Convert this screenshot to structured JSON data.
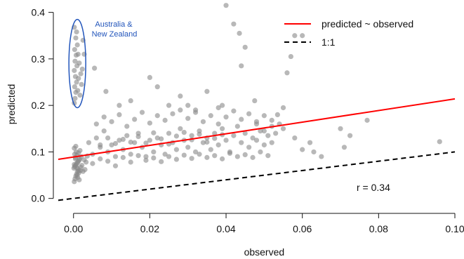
{
  "chart_data": {
    "type": "scatter",
    "xlabel": "observed",
    "ylabel": "predicted",
    "xlim": [
      -0.004,
      0.1
    ],
    "ylim": [
      -0.005,
      0.41
    ],
    "x_ticks": [
      "0.00",
      "0.02",
      "0.04",
      "0.06",
      "0.08",
      "0.10"
    ],
    "y_ticks": [
      "0.0",
      "0.1",
      "0.2",
      "0.3",
      "0.4"
    ],
    "legend": {
      "placement": "top-right",
      "entries": [
        {
          "label": "predicted ~ observed",
          "color": "#ff0000",
          "style": "solid"
        },
        {
          "label": "1:1",
          "color": "#000000",
          "style": "dashed"
        }
      ]
    },
    "annotation": {
      "text_lines": [
        "Australia &",
        "New Zealand"
      ],
      "color": "#2255bb",
      "ellipse": {
        "center": [
          0.001,
          0.29
        ],
        "rx": 0.0015,
        "ry": 0.095
      }
    },
    "correlation_label": "r = 0.34",
    "lines": [
      {
        "name": "predicted ~ observed",
        "color": "#ff0000",
        "x": [
          -0.004,
          0.1
        ],
        "y": [
          0.084,
          0.214
        ]
      },
      {
        "name": "1:1",
        "color": "#000000",
        "dash": true,
        "x": [
          -0.004,
          0.1
        ],
        "y": [
          -0.004,
          0.1
        ]
      }
    ],
    "point_color": "#888888",
    "points": [
      [
        0.0002,
        0.036
      ],
      [
        0.0004,
        0.042
      ],
      [
        0.0006,
        0.048
      ],
      [
        0.0008,
        0.052
      ],
      [
        0.001,
        0.058
      ],
      [
        0.0012,
        0.063
      ],
      [
        0.0003,
        0.068
      ],
      [
        0.0007,
        0.072
      ],
      [
        0.0011,
        0.077
      ],
      [
        0.0015,
        0.082
      ],
      [
        0.0005,
        0.088
      ],
      [
        0.0009,
        0.093
      ],
      [
        0.0013,
        0.098
      ],
      [
        0.0017,
        0.103
      ],
      [
        0.0002,
        0.108
      ],
      [
        0.0006,
        0.112
      ],
      [
        0.001,
        0.05
      ],
      [
        0.0014,
        0.055
      ],
      [
        0.0018,
        0.06
      ],
      [
        0.0001,
        0.065
      ],
      [
        0.0004,
        0.07
      ],
      [
        0.0008,
        0.075
      ],
      [
        0.0012,
        0.08
      ],
      [
        0.0016,
        0.085
      ],
      [
        0.002,
        0.09
      ],
      [
        0.0003,
        0.095
      ],
      [
        0.0007,
        0.1
      ],
      [
        0.0011,
        0.045
      ],
      [
        0.0015,
        0.04
      ],
      [
        0.0019,
        0.067
      ],
      [
        0.0022,
        0.071
      ],
      [
        0.0025,
        0.058
      ],
      [
        0.0028,
        0.083
      ],
      [
        0.003,
        0.062
      ],
      [
        0.0033,
        0.078
      ],
      [
        0.0036,
        0.091
      ],
      [
        0.0002,
        0.073
      ],
      [
        0.0009,
        0.066
      ],
      [
        0.0013,
        0.059
      ],
      [
        0.0005,
        0.085
      ],
      [
        0.0002,
        0.205
      ],
      [
        0.0004,
        0.215
      ],
      [
        0.0006,
        0.228
      ],
      [
        0.0003,
        0.24
      ],
      [
        0.0008,
        0.25
      ],
      [
        0.0005,
        0.262
      ],
      [
        0.0002,
        0.275
      ],
      [
        0.0009,
        0.285
      ],
      [
        0.0004,
        0.295
      ],
      [
        0.0007,
        0.308
      ],
      [
        0.0003,
        0.32
      ],
      [
        0.001,
        0.33
      ],
      [
        0.0006,
        0.345
      ],
      [
        0.0008,
        0.358
      ],
      [
        0.0002,
        0.368
      ],
      [
        0.0011,
        0.232
      ],
      [
        0.0013,
        0.258
      ],
      [
        0.0015,
        0.291
      ],
      [
        0.0017,
        0.222
      ],
      [
        0.0012,
        0.31
      ],
      [
        0.0025,
        0.34
      ],
      [
        0.0028,
        0.31
      ],
      [
        0.0023,
        0.278
      ],
      [
        0.0021,
        0.245
      ],
      [
        0.0019,
        0.268
      ],
      [
        0.004,
        0.12
      ],
      [
        0.005,
        0.095
      ],
      [
        0.006,
        0.13
      ],
      [
        0.007,
        0.11
      ],
      [
        0.008,
        0.145
      ],
      [
        0.009,
        0.1
      ],
      [
        0.01,
        0.115
      ],
      [
        0.011,
        0.09
      ],
      [
        0.012,
        0.125
      ],
      [
        0.013,
        0.105
      ],
      [
        0.014,
        0.135
      ],
      [
        0.015,
        0.095
      ],
      [
        0.016,
        0.12
      ],
      [
        0.017,
        0.14
      ],
      [
        0.018,
        0.11
      ],
      [
        0.019,
        0.09
      ],
      [
        0.02,
        0.125
      ],
      [
        0.021,
        0.1
      ],
      [
        0.022,
        0.13
      ],
      [
        0.023,
        0.115
      ],
      [
        0.024,
        0.095
      ],
      [
        0.025,
        0.14
      ],
      [
        0.026,
        0.12
      ],
      [
        0.027,
        0.105
      ],
      [
        0.028,
        0.15
      ],
      [
        0.029,
        0.125
      ],
      [
        0.03,
        0.11
      ],
      [
        0.031,
        0.135
      ],
      [
        0.032,
        0.1
      ],
      [
        0.033,
        0.145
      ],
      [
        0.034,
        0.12
      ],
      [
        0.035,
        0.13
      ],
      [
        0.036,
        0.105
      ],
      [
        0.037,
        0.14
      ],
      [
        0.038,
        0.115
      ],
      [
        0.039,
        0.15
      ],
      [
        0.04,
        0.125
      ],
      [
        0.041,
        0.1
      ],
      [
        0.042,
        0.135
      ],
      [
        0.043,
        0.155
      ],
      [
        0.044,
        0.12
      ],
      [
        0.045,
        0.14
      ],
      [
        0.046,
        0.11
      ],
      [
        0.047,
        0.13
      ],
      [
        0.048,
        0.125
      ],
      [
        0.049,
        0.145
      ],
      [
        0.05,
        0.115
      ],
      [
        0.051,
        0.135
      ],
      [
        0.052,
        0.12
      ],
      [
        0.053,
        0.14
      ],
      [
        0.005,
        0.075
      ],
      [
        0.007,
        0.085
      ],
      [
        0.009,
        0.08
      ],
      [
        0.011,
        0.07
      ],
      [
        0.013,
        0.088
      ],
      [
        0.015,
        0.078
      ],
      [
        0.017,
        0.092
      ],
      [
        0.019,
        0.082
      ],
      [
        0.021,
        0.087
      ],
      [
        0.023,
        0.079
      ],
      [
        0.025,
        0.09
      ],
      [
        0.027,
        0.084
      ],
      [
        0.029,
        0.093
      ],
      [
        0.031,
        0.086
      ],
      [
        0.033,
        0.095
      ],
      [
        0.035,
        0.088
      ],
      [
        0.037,
        0.092
      ],
      [
        0.039,
        0.085
      ],
      [
        0.041,
        0.097
      ],
      [
        0.043,
        0.09
      ],
      [
        0.045,
        0.094
      ],
      [
        0.047,
        0.088
      ],
      [
        0.049,
        0.1
      ],
      [
        0.051,
        0.092
      ],
      [
        0.006,
        0.16
      ],
      [
        0.008,
        0.175
      ],
      [
        0.01,
        0.165
      ],
      [
        0.012,
        0.18
      ],
      [
        0.014,
        0.155
      ],
      [
        0.016,
        0.17
      ],
      [
        0.018,
        0.185
      ],
      [
        0.02,
        0.162
      ],
      [
        0.022,
        0.178
      ],
      [
        0.024,
        0.168
      ],
      [
        0.026,
        0.182
      ],
      [
        0.028,
        0.19
      ],
      [
        0.03,
        0.172
      ],
      [
        0.032,
        0.185
      ],
      [
        0.034,
        0.165
      ],
      [
        0.036,
        0.178
      ],
      [
        0.038,
        0.195
      ],
      [
        0.04,
        0.175
      ],
      [
        0.042,
        0.188
      ],
      [
        0.044,
        0.17
      ],
      [
        0.046,
        0.182
      ],
      [
        0.048,
        0.165
      ],
      [
        0.05,
        0.178
      ],
      [
        0.052,
        0.168
      ],
      [
        0.007,
        0.115
      ],
      [
        0.009,
        0.13
      ],
      [
        0.011,
        0.118
      ],
      [
        0.013,
        0.127
      ],
      [
        0.015,
        0.121
      ],
      [
        0.017,
        0.133
      ],
      [
        0.019,
        0.119
      ],
      [
        0.021,
        0.141
      ],
      [
        0.023,
        0.128
      ],
      [
        0.025,
        0.117
      ],
      [
        0.027,
        0.134
      ],
      [
        0.029,
        0.142
      ],
      [
        0.031,
        0.126
      ],
      [
        0.033,
        0.138
      ],
      [
        0.035,
        0.121
      ],
      [
        0.037,
        0.129
      ],
      [
        0.039,
        0.137
      ],
      [
        0.0055,
        0.28
      ],
      [
        0.0085,
        0.23
      ],
      [
        0.012,
        0.2
      ],
      [
        0.015,
        0.21
      ],
      [
        0.02,
        0.26
      ],
      [
        0.022,
        0.24
      ],
      [
        0.025,
        0.2
      ],
      [
        0.028,
        0.22
      ],
      [
        0.03,
        0.2
      ],
      [
        0.032,
        0.19
      ],
      [
        0.035,
        0.23
      ],
      [
        0.038,
        0.16
      ],
      [
        0.039,
        0.2
      ],
      [
        0.04,
        0.415
      ],
      [
        0.042,
        0.375
      ],
      [
        0.0435,
        0.355
      ],
      [
        0.044,
        0.285
      ],
      [
        0.045,
        0.325
      ],
      [
        0.0475,
        0.21
      ],
      [
        0.0535,
        0.18
      ],
      [
        0.055,
        0.195
      ],
      [
        0.056,
        0.27
      ],
      [
        0.057,
        0.305
      ],
      [
        0.058,
        0.35
      ],
      [
        0.06,
        0.35
      ],
      [
        0.062,
        0.12
      ],
      [
        0.063,
        0.1
      ],
      [
        0.065,
        0.09
      ],
      [
        0.07,
        0.15
      ],
      [
        0.071,
        0.11
      ],
      [
        0.0725,
        0.135
      ],
      [
        0.077,
        0.168
      ],
      [
        0.096,
        0.122
      ],
      [
        0.054,
        0.16
      ],
      [
        0.048,
        0.16
      ],
      [
        0.058,
        0.13
      ],
      [
        0.06,
        0.105
      ],
      [
        0.055,
        0.15
      ],
      [
        0.052,
        0.155
      ],
      [
        0.05,
        0.145
      ]
    ]
  }
}
